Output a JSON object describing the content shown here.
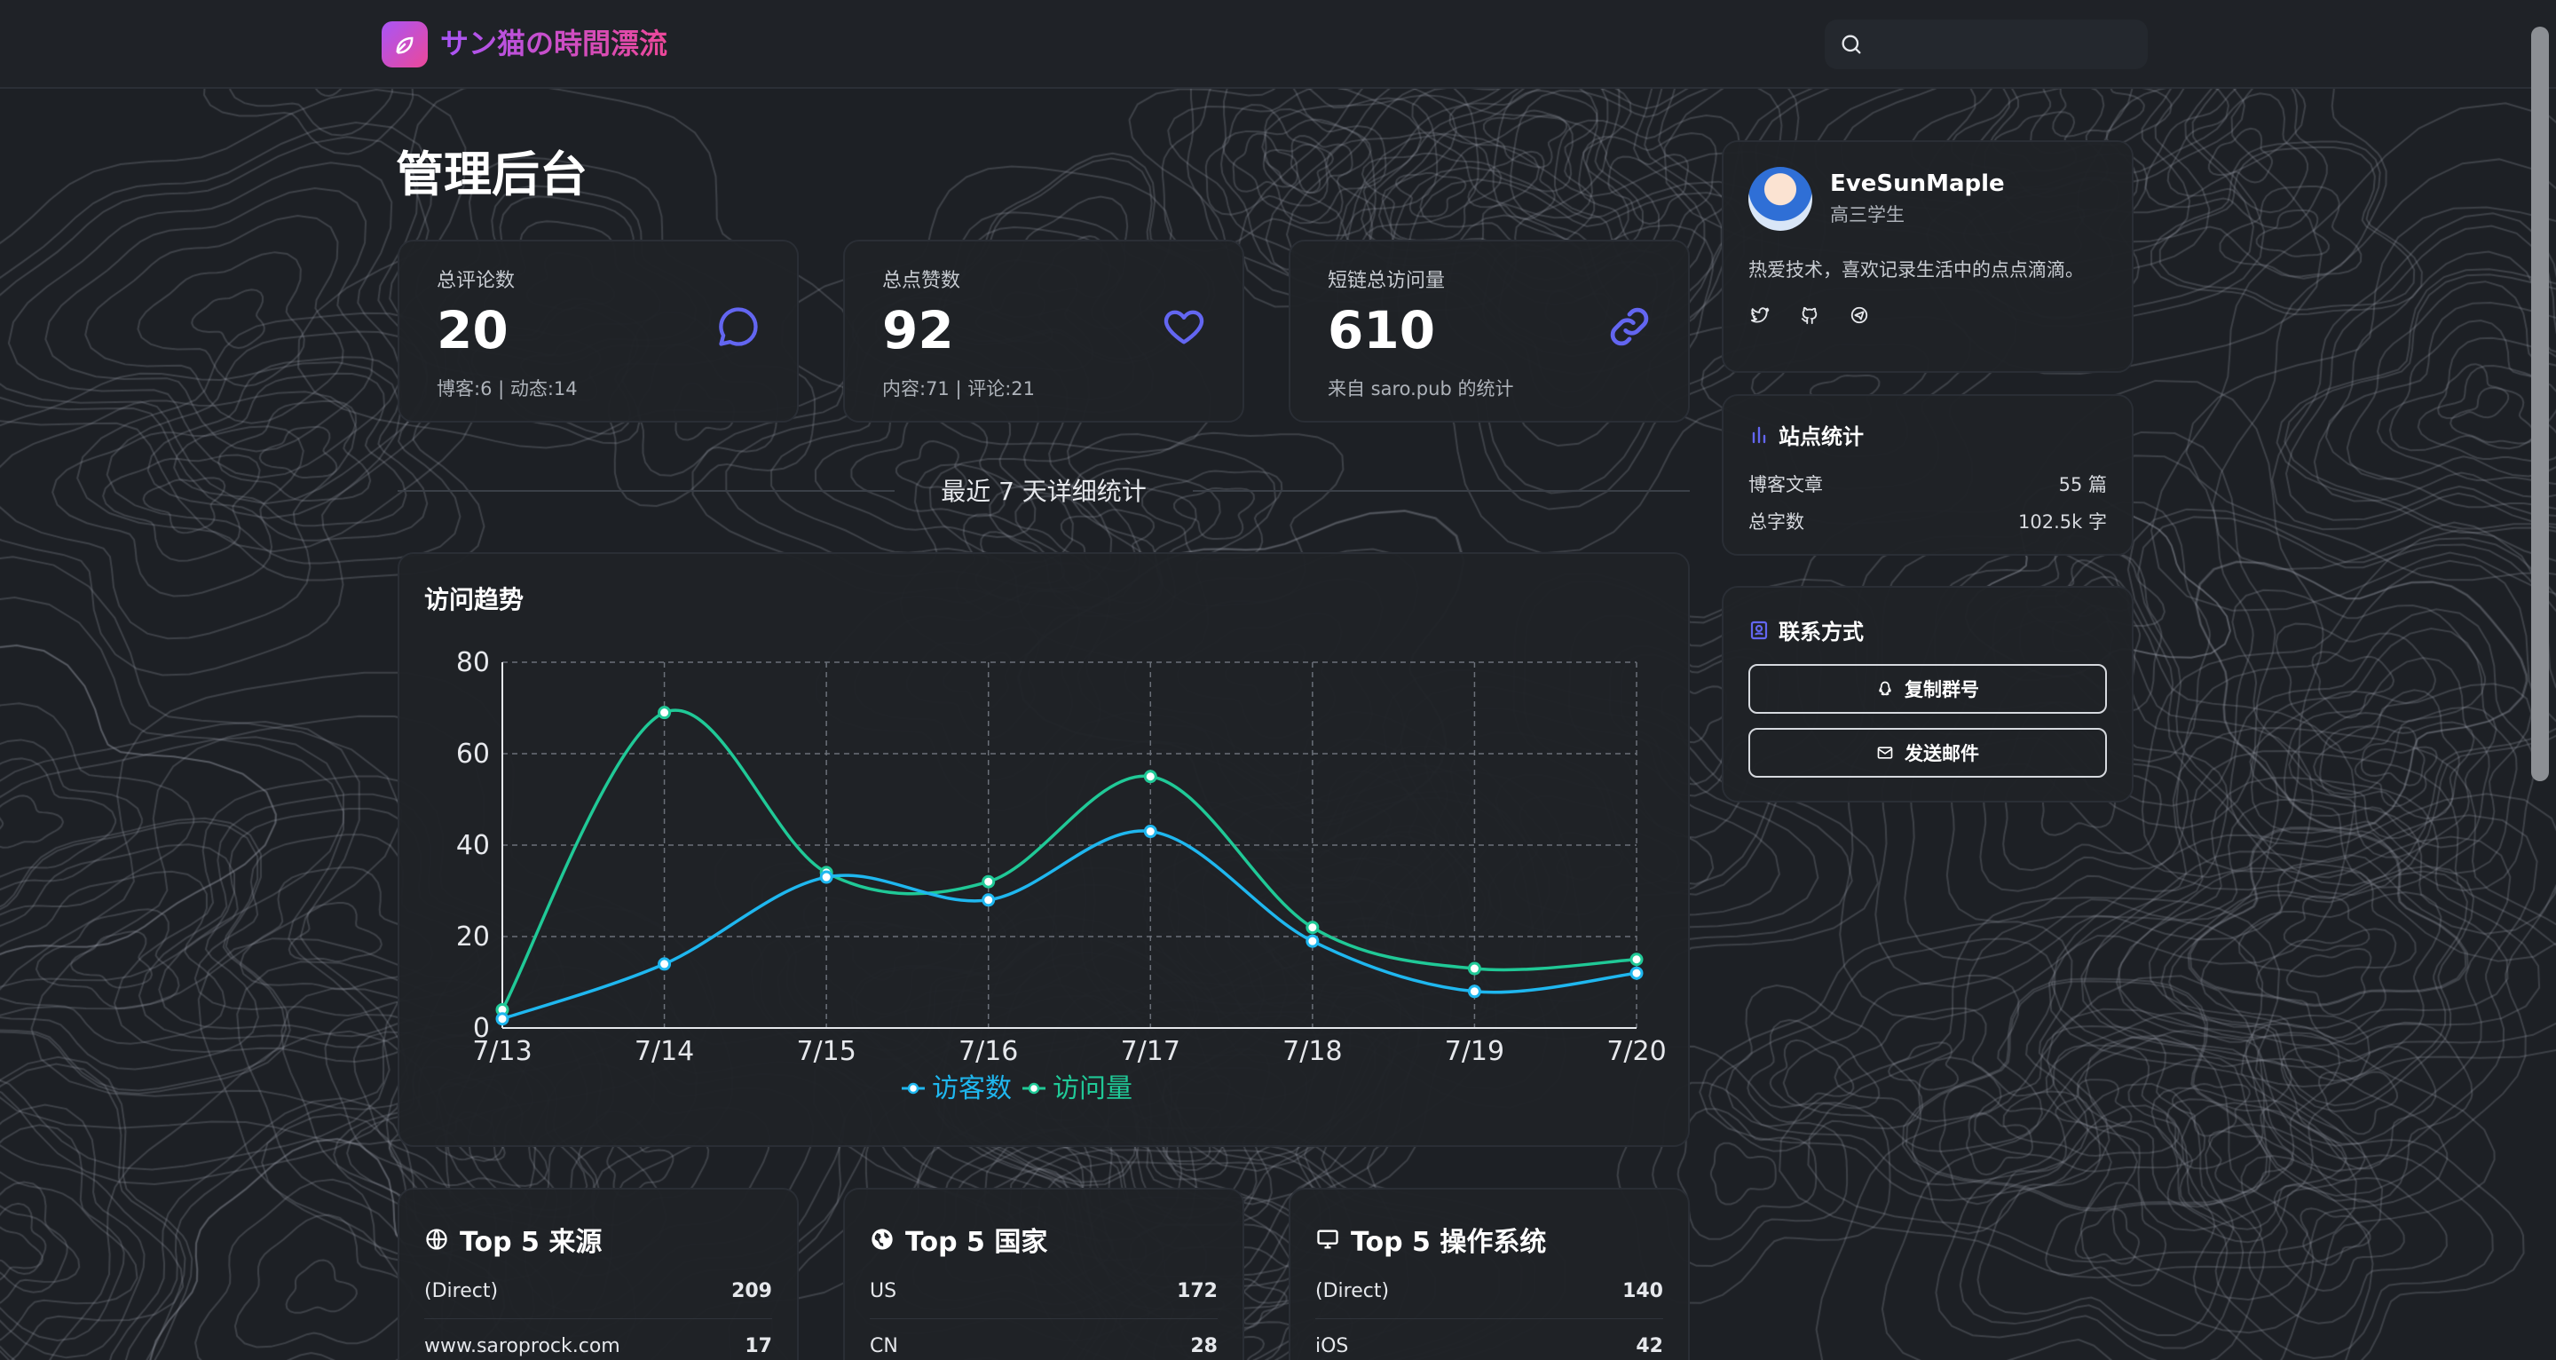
{
  "site": {
    "title": "サン猫の時間漂流"
  },
  "search": {
    "placeholder": ""
  },
  "page": {
    "title": "管理后台"
  },
  "stats": [
    {
      "label": "总评论数",
      "value": "20",
      "sub": "博客:6 | 动态:14",
      "icon": "chat-bubble-icon"
    },
    {
      "label": "总点赞数",
      "value": "92",
      "sub": "内容:71 | 评论:21",
      "icon": "heart-icon"
    },
    {
      "label": "短链总访问量",
      "value": "610",
      "sub": "来自 saro.pub 的统计",
      "icon": "link-icon"
    }
  ],
  "section": {
    "title": "最近 7 天详细统计"
  },
  "colors": {
    "accent": "#6366f1",
    "visitors": "#1fb7ef",
    "views": "#20c997"
  },
  "chart_data": {
    "type": "line",
    "title": "访问趋势",
    "categories": [
      "7/13",
      "7/14",
      "7/15",
      "7/16",
      "7/17",
      "7/18",
      "7/19",
      "7/20"
    ],
    "series": [
      {
        "name": "访客数",
        "values": [
          2,
          14,
          33,
          28,
          43,
          19,
          8,
          12
        ]
      },
      {
        "name": "访问量",
        "values": [
          4,
          69,
          34,
          32,
          55,
          22,
          13,
          15
        ]
      }
    ],
    "ylim": [
      0,
      80
    ],
    "yticks": [
      "0",
      "20",
      "40",
      "60",
      "80"
    ],
    "grid": true,
    "legend": "bottom"
  },
  "top_sources": {
    "title": "Top 5 来源",
    "rows": [
      {
        "name": "(Direct)",
        "value": "209"
      },
      {
        "name": "www.saroprock.com",
        "value": "17"
      }
    ]
  },
  "top_countries": {
    "title": "Top 5 国家",
    "rows": [
      {
        "name": "US",
        "value": "172"
      },
      {
        "name": "CN",
        "value": "28"
      }
    ]
  },
  "top_os": {
    "title": "Top 5 操作系统",
    "rows": [
      {
        "name": "(Direct)",
        "value": "140"
      },
      {
        "name": "iOS",
        "value": "42"
      }
    ]
  },
  "profile": {
    "name": "EveSunMaple",
    "subtitle": "高三学生",
    "bio": "热爱技术，喜欢记录生活中的点点滴滴。",
    "socials": [
      "twitter-icon",
      "github-icon",
      "telegram-icon"
    ]
  },
  "site_stats": {
    "title": "站点统计",
    "rows": [
      {
        "label": "博客文章",
        "value": "55 篇"
      },
      {
        "label": "总字数",
        "value": "102.5k 字"
      }
    ]
  },
  "contact": {
    "title": "联系方式",
    "copy_group": "复制群号",
    "send_mail": "发送邮件"
  }
}
